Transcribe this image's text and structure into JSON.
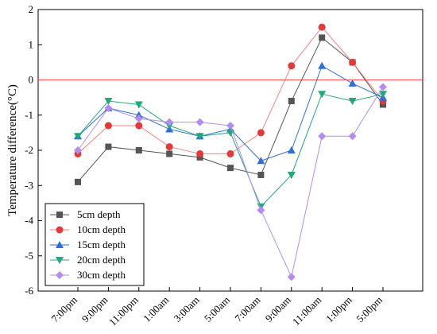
{
  "chart_data": {
    "type": "line",
    "ylabel": "Temperature difference(°C)",
    "xlabel": "",
    "categories": [
      "7:00pm",
      "9:00pm",
      "11:00pm",
      "1:00am",
      "3:00am",
      "5:00am",
      "7:00am",
      "9:00am",
      "11:00am",
      "1:00pm",
      "5:00pm"
    ],
    "ylim": [
      -6,
      2
    ],
    "yticks": [
      "2",
      "1",
      "0",
      "-1",
      "-2",
      "-3",
      "-4",
      "-5",
      "-6"
    ],
    "reference_line": {
      "y": 0,
      "color": "#ff4d4d"
    },
    "legend_position": "bottom-left",
    "series": [
      {
        "name": "5cm depth",
        "color": "#555555",
        "marker": "square",
        "values": [
          -2.9,
          -1.9,
          -2.0,
          -2.1,
          -2.2,
          -2.5,
          -2.7,
          -0.6,
          1.2,
          0.5,
          -0.7
        ]
      },
      {
        "name": "10cm depth",
        "color": "#ff8080",
        "marker_fill": "#e03a3a",
        "marker": "circle",
        "values": [
          -2.1,
          -1.3,
          -1.3,
          -1.9,
          -2.1,
          -2.1,
          -1.5,
          0.4,
          1.5,
          0.5,
          -0.6
        ]
      },
      {
        "name": "15cm depth",
        "color": "#2f6fd6",
        "marker": "triangle-up",
        "values": [
          -1.6,
          -0.8,
          -1.0,
          -1.4,
          -1.6,
          -1.4,
          -2.3,
          -2.0,
          0.4,
          -0.1,
          -0.5
        ]
      },
      {
        "name": "20cm depth",
        "color": "#22a87a",
        "marker": "triangle-down",
        "values": [
          -1.6,
          -0.6,
          -0.7,
          -1.3,
          -1.6,
          -1.5,
          -3.6,
          -2.7,
          -0.4,
          -0.6,
          -0.4
        ]
      },
      {
        "name": "30cm depth",
        "color": "#b38cf0",
        "marker": "diamond",
        "values": [
          -2.0,
          -0.8,
          -1.1,
          -1.2,
          -1.2,
          -1.3,
          -3.7,
          -5.6,
          -1.6,
          -1.6,
          -0.2
        ]
      }
    ]
  }
}
